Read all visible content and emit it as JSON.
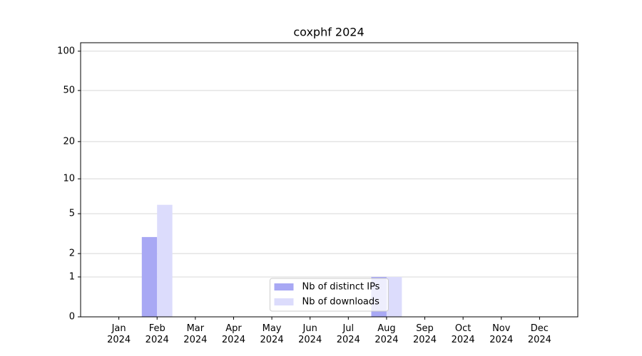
{
  "chart_data": {
    "type": "bar",
    "title": "coxphf 2024",
    "categories": [
      "Jan 2024",
      "Feb 2024",
      "Mar 2024",
      "Apr 2024",
      "May 2024",
      "Jun 2024",
      "Jul 2024",
      "Aug 2024",
      "Sep 2024",
      "Oct 2024",
      "Nov 2024",
      "Dec 2024"
    ],
    "series": [
      {
        "name": "Nb of distinct IPs",
        "color": "#a8a8f4",
        "values": [
          0,
          3,
          0,
          0,
          0,
          0,
          0,
          1,
          0,
          0,
          0,
          0
        ]
      },
      {
        "name": "Nb of downloads",
        "color": "#dcdcfc",
        "values": [
          0,
          6,
          0,
          0,
          0,
          0,
          0,
          1,
          0,
          0,
          0,
          0
        ]
      }
    ],
    "yscale": "log1p",
    "ylim": [
      0,
      116
    ],
    "yticks": [
      0,
      1,
      2,
      5,
      10,
      20,
      50,
      100
    ],
    "grid": true,
    "legend": "lower center"
  }
}
